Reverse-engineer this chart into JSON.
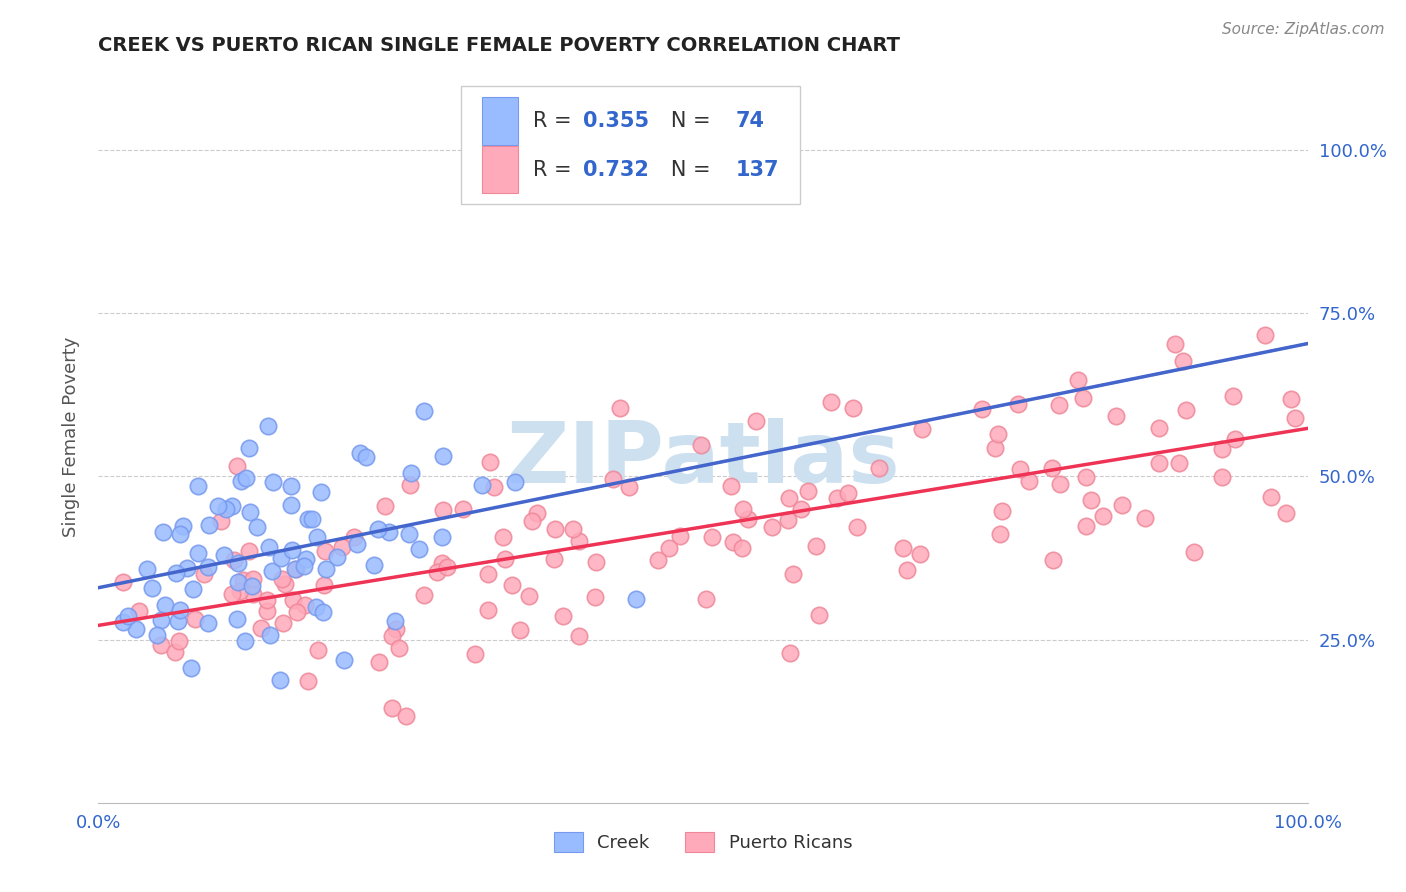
{
  "title": "CREEK VS PUERTO RICAN SINGLE FEMALE POVERTY CORRELATION CHART",
  "source_text": "Source: ZipAtlas.com",
  "ylabel": "Single Female Poverty",
  "creek_R": 0.355,
  "creek_N": 74,
  "pr_R": 0.732,
  "pr_N": 137,
  "creek_color": "#99bbff",
  "pr_color": "#ffaabb",
  "creek_edge_color": "#7799ee",
  "pr_edge_color": "#ee8899",
  "creek_line_color": "#4466cc",
  "pr_line_color": "#ee3355",
  "dashed_line_color": "#aabbcc",
  "watermark_color": "#cce0f0",
  "blue_text_color": "#3366cc",
  "title_color": "#222222",
  "axis_tick_color": "#3366cc",
  "bg_color": "#ffffff",
  "grid_color": "#cccccc",
  "legend_border_color": "#cccccc",
  "source_color": "#888888"
}
